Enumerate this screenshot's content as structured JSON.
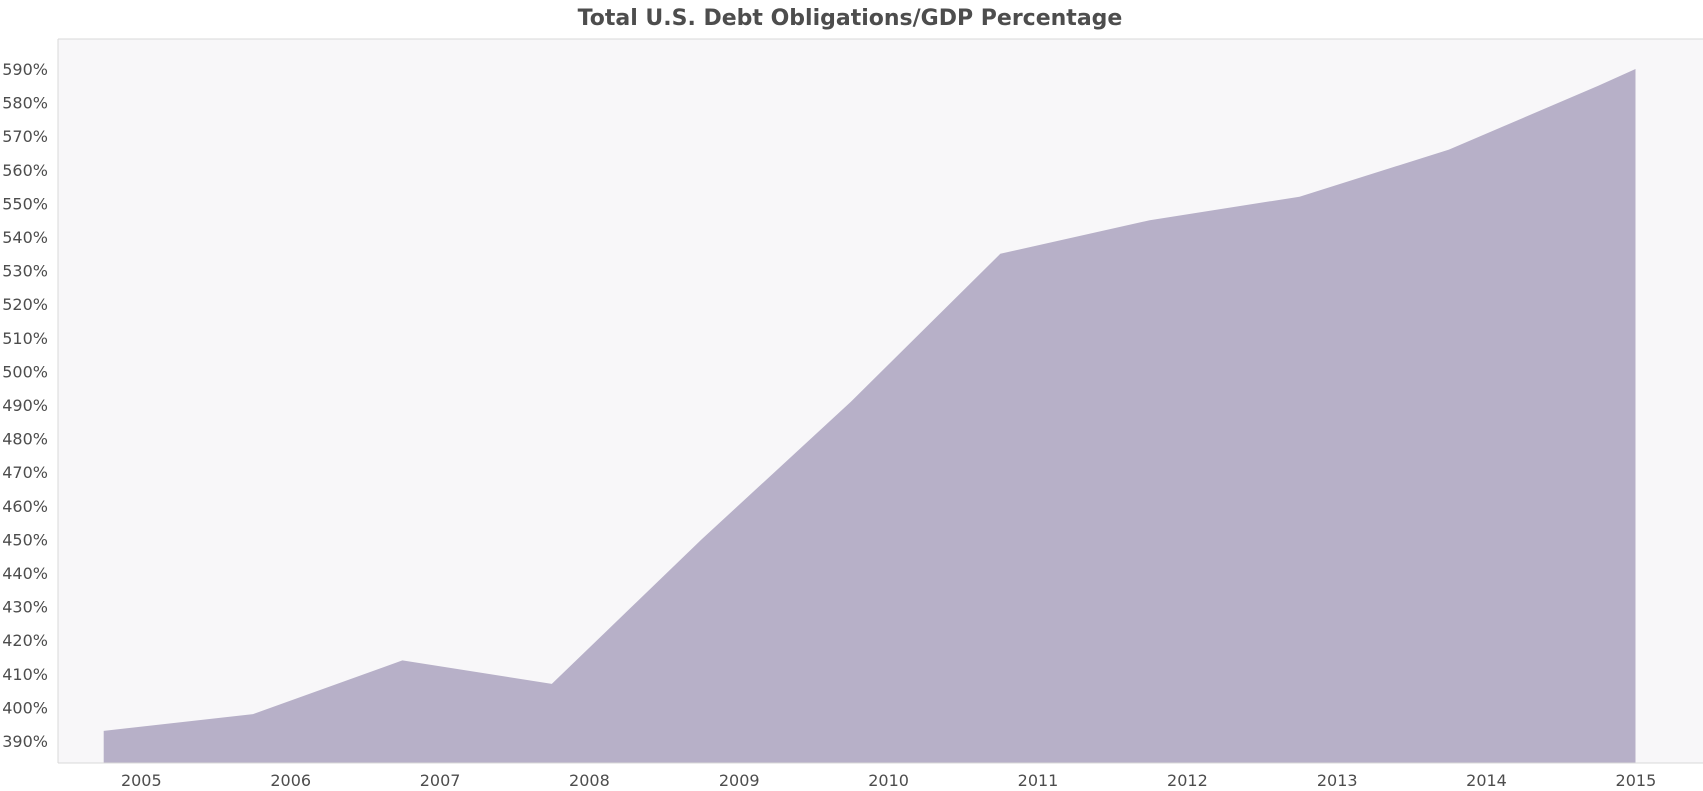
{
  "chart_data": {
    "type": "area",
    "title": "Total U.S. Debt Obligations/GDP Percentage",
    "xlabel": "",
    "ylabel": "",
    "x_tick_labels": [
      "2005",
      "2006",
      "2007",
      "2008",
      "2009",
      "2010",
      "2011",
      "2012",
      "2013",
      "2014",
      "2015"
    ],
    "y_tick_labels": [
      "390%",
      "400%",
      "410%",
      "420%",
      "430%",
      "440%",
      "450%",
      "460%",
      "470%",
      "480%",
      "490%",
      "500%",
      "510%",
      "520%",
      "530%",
      "540%",
      "550%",
      "560%",
      "570%",
      "580%",
      "590%"
    ],
    "ylim": [
      384,
      598
    ],
    "xlim": [
      "2004-07-01",
      "2015-07-01"
    ],
    "grid": false,
    "series": [
      {
        "color": "#b7b0c8",
        "points": [
          {
            "date": "2004-10-01",
            "value": 393
          },
          {
            "date": "2005-10-01",
            "value": 398
          },
          {
            "date": "2006-10-01",
            "value": 414
          },
          {
            "date": "2007-10-01",
            "value": 407
          },
          {
            "date": "2008-10-01",
            "value": 450
          },
          {
            "date": "2009-10-01",
            "value": 491
          },
          {
            "date": "2010-10-01",
            "value": 535
          },
          {
            "date": "2011-10-01",
            "value": 545
          },
          {
            "date": "2012-10-01",
            "value": 552
          },
          {
            "date": "2013-10-01",
            "value": 566
          },
          {
            "date": "2014-10-01",
            "value": 585
          },
          {
            "date": "2014-12-31",
            "value": 590
          }
        ]
      }
    ]
  },
  "colors": {
    "plot_background": "#f8f7f9",
    "area_fill": "#b7b0c8",
    "axis_text": "#4d4d4d",
    "title_text": "#4d4d4d",
    "frame": "#d9d9d9"
  }
}
